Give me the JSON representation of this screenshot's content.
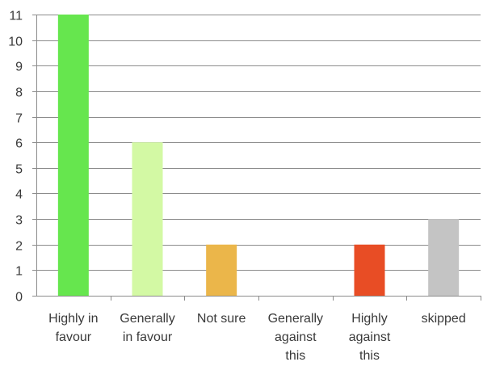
{
  "chart_data": {
    "type": "bar",
    "title": "",
    "xlabel": "",
    "ylabel": "",
    "categories": [
      "Highly in favour",
      "Generally in favour",
      "Not sure",
      "Generally against this",
      "Highly against this",
      "skipped"
    ],
    "category_label_lines": [
      [
        "Highly in",
        "favour"
      ],
      [
        "Generally",
        "in favour"
      ],
      [
        "Not sure"
      ],
      [
        "Generally",
        "against",
        "this"
      ],
      [
        "Highly",
        "against",
        "this"
      ],
      [
        "skipped"
      ]
    ],
    "values": [
      11,
      6,
      2,
      0,
      2,
      3
    ],
    "bar_colors": [
      "#66e64e",
      "#d3f9a4",
      "#ebb64a",
      "#cccccc",
      "#e84d25",
      "#c4c4c4"
    ],
    "ylim": [
      0,
      11
    ],
    "yticks": [
      0,
      1,
      2,
      3,
      4,
      5,
      6,
      7,
      8,
      9,
      10,
      11
    ],
    "grid": true,
    "legend": "none",
    "grid_color": "#8c8c8c"
  }
}
